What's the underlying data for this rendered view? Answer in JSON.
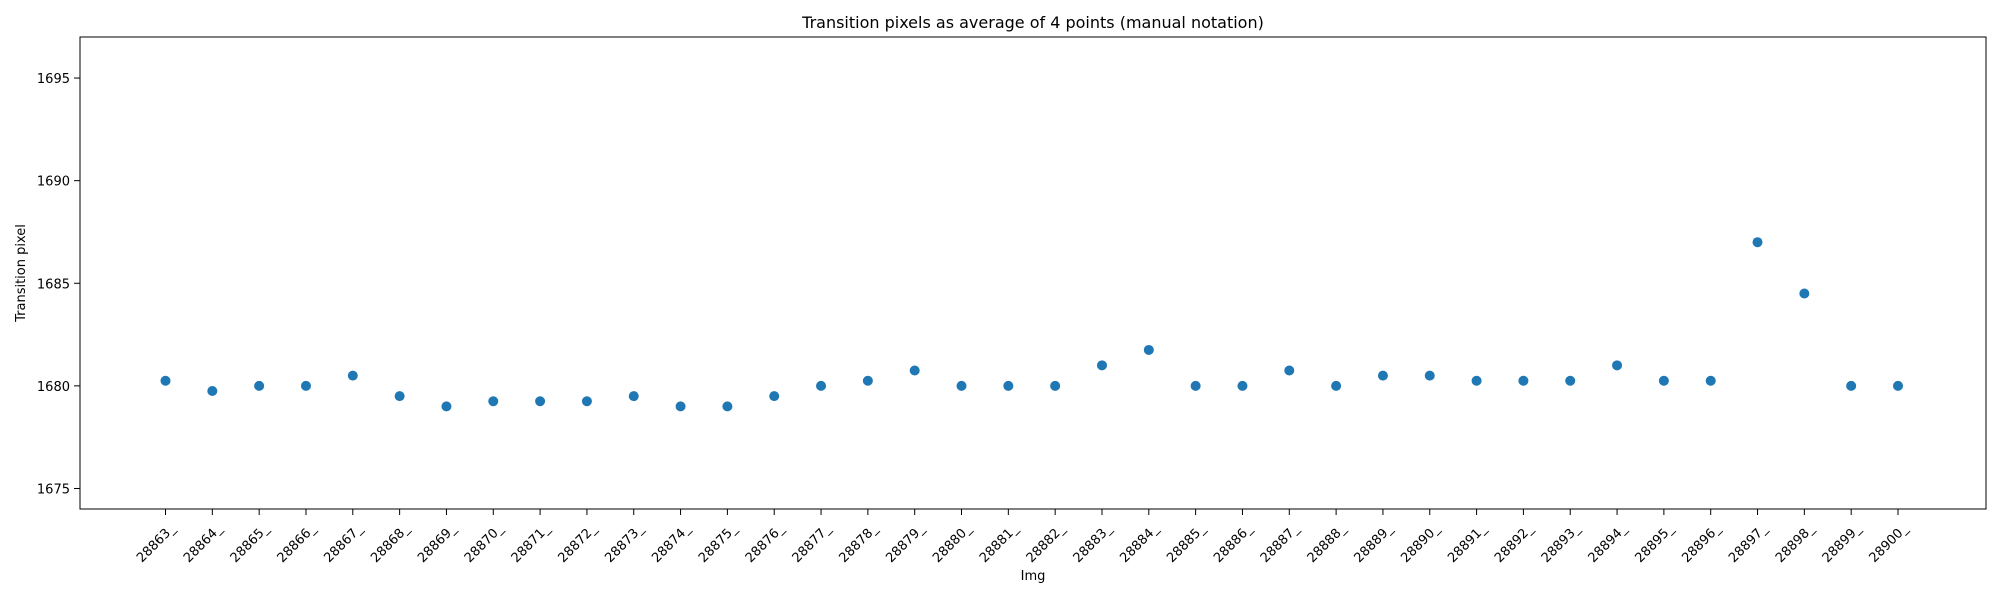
{
  "chart_data": {
    "type": "scatter",
    "title": "Transition pixels as average of 4 points (manual notation)",
    "xlabel": "Img",
    "ylabel": "Transition pixel",
    "ylim": [
      1674,
      1697
    ],
    "yticks": [
      1675,
      1680,
      1685,
      1690,
      1695
    ],
    "grid": false,
    "color": "#1f77b4",
    "categories": [
      "28863_",
      "28864_",
      "28865_",
      "28866_",
      "28867_",
      "28868_",
      "28869_",
      "28870_",
      "28871_",
      "28872_",
      "28873_",
      "28874_",
      "28875_",
      "28876_",
      "28877_",
      "28878_",
      "28879_",
      "28880_",
      "28881_",
      "28882_",
      "28883_",
      "28884_",
      "28885_",
      "28886_",
      "28887_",
      "28888_",
      "28889_",
      "28890_",
      "28891_",
      "28892_",
      "28893_",
      "28894_",
      "28895_",
      "28896_",
      "28897_",
      "28898_",
      "28899_",
      "28900_"
    ],
    "values": [
      1680.25,
      1679.75,
      1680.0,
      1680.0,
      1680.5,
      1679.5,
      1679.0,
      1679.25,
      1679.25,
      1679.25,
      1679.5,
      1679.0,
      1679.0,
      1679.5,
      1680.0,
      1680.25,
      1680.75,
      1680.0,
      1680.0,
      1680.0,
      1681.0,
      1681.75,
      1680.0,
      1680.0,
      1680.75,
      1680.0,
      1680.5,
      1680.5,
      1680.25,
      1680.25,
      1680.25,
      1681.0,
      1680.25,
      1680.25,
      1687.0,
      1684.5,
      1680.0,
      1680.0
    ]
  }
}
